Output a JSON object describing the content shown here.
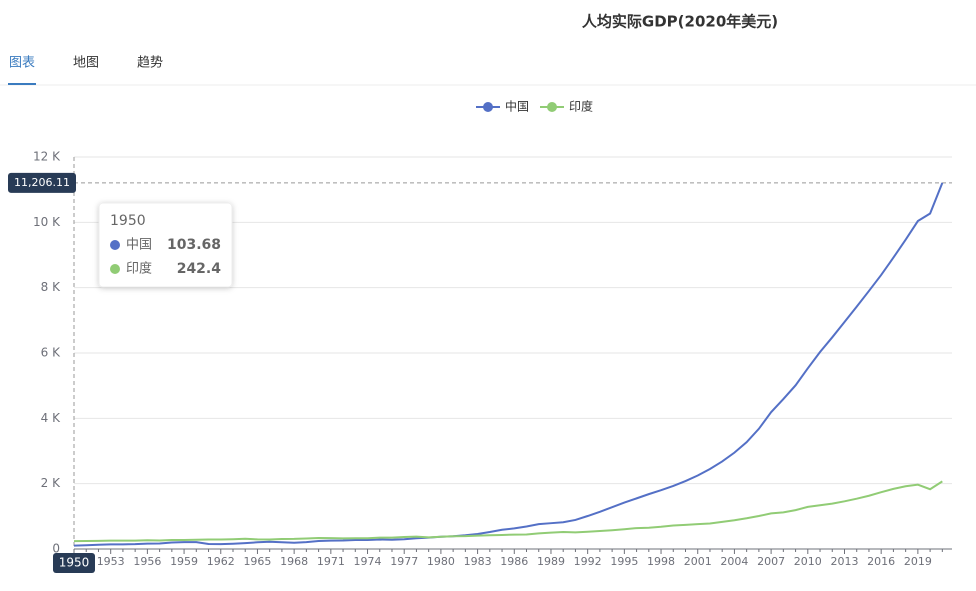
{
  "tabs": {
    "items": [
      "图表",
      "地图",
      "趋势"
    ],
    "active": 0
  },
  "chart_data": {
    "type": "line",
    "title": "人均实际GDP(2020年美元)",
    "legend": "top",
    "categories": [
      "1950",
      null,
      null,
      "1953",
      null,
      null,
      "1956",
      null,
      null,
      "1959",
      null,
      null,
      "1962",
      null,
      null,
      "1965",
      null,
      null,
      "1968",
      null,
      null,
      "1971",
      null,
      null,
      "1974",
      null,
      null,
      "1977",
      null,
      null,
      "1980",
      null,
      null,
      "1983",
      null,
      null,
      "1986",
      null,
      null,
      "1989",
      null,
      null,
      "1992",
      null,
      null,
      "1995",
      null,
      null,
      "1998",
      null,
      null,
      "2001",
      null,
      null,
      "2004",
      null,
      null,
      "2007",
      null,
      null,
      "2010",
      null,
      null,
      "2013",
      null,
      null,
      "2016",
      null,
      null,
      "2019",
      null,
      null
    ],
    "series": [
      {
        "name": "中国",
        "color": "#5470c6",
        "values": [
          103.68,
          115,
          130,
          140,
          142,
          148,
          165,
          170,
          200,
          210,
          210,
          155,
          148,
          160,
          180,
          205,
          220,
          205,
          190,
          210,
          245,
          255,
          260,
          275,
          275,
          290,
          282,
          300,
          330,
          350,
          375,
          390,
          420,
          460,
          520,
          590,
          630,
          690,
          760,
          790,
          820,
          890,
          1010,
          1140,
          1280,
          1420,
          1550,
          1680,
          1800,
          1930,
          2080,
          2250,
          2450,
          2680,
          2950,
          3270,
          3680,
          4190,
          4590,
          5010,
          5530,
          6030,
          6480,
          6950,
          7420,
          7900,
          8390,
          8920,
          9470,
          10040,
          10270,
          11206.11
        ]
      },
      {
        "name": "印度",
        "color": "#91cc75",
        "values": [
          242.4,
          246,
          248,
          255,
          258,
          258,
          268,
          262,
          275,
          275,
          285,
          290,
          292,
          300,
          312,
          295,
          292,
          307,
          310,
          322,
          335,
          333,
          325,
          330,
          330,
          350,
          350,
          366,
          380,
          355,
          375,
          390,
          393,
          410,
          420,
          430,
          440,
          445,
          480,
          500,
          520,
          510,
          530,
          550,
          575,
          605,
          640,
          650,
          680,
          720,
          740,
          760,
          780,
          830,
          880,
          940,
          1010,
          1090,
          1120,
          1190,
          1290,
          1340,
          1390,
          1460,
          1540,
          1630,
          1740,
          1840,
          1920,
          1970,
          1830,
          2070
        ]
      }
    ],
    "ylim": [
      0,
      12000
    ],
    "yticks": [
      0,
      {
        "value": 2000,
        "label": "2 K"
      },
      {
        "value": 4000,
        "label": "4 K"
      },
      {
        "value": 6000,
        "label": "6 K"
      },
      {
        "value": 8000,
        "label": "8 K"
      },
      {
        "value": 10000,
        "label": "10 K"
      },
      {
        "value": 12000,
        "label": "12 K"
      }
    ],
    "grid": true,
    "y_pointer": {
      "value": 11206.11,
      "label": "11,206.11"
    },
    "tooltip_index": 0
  }
}
